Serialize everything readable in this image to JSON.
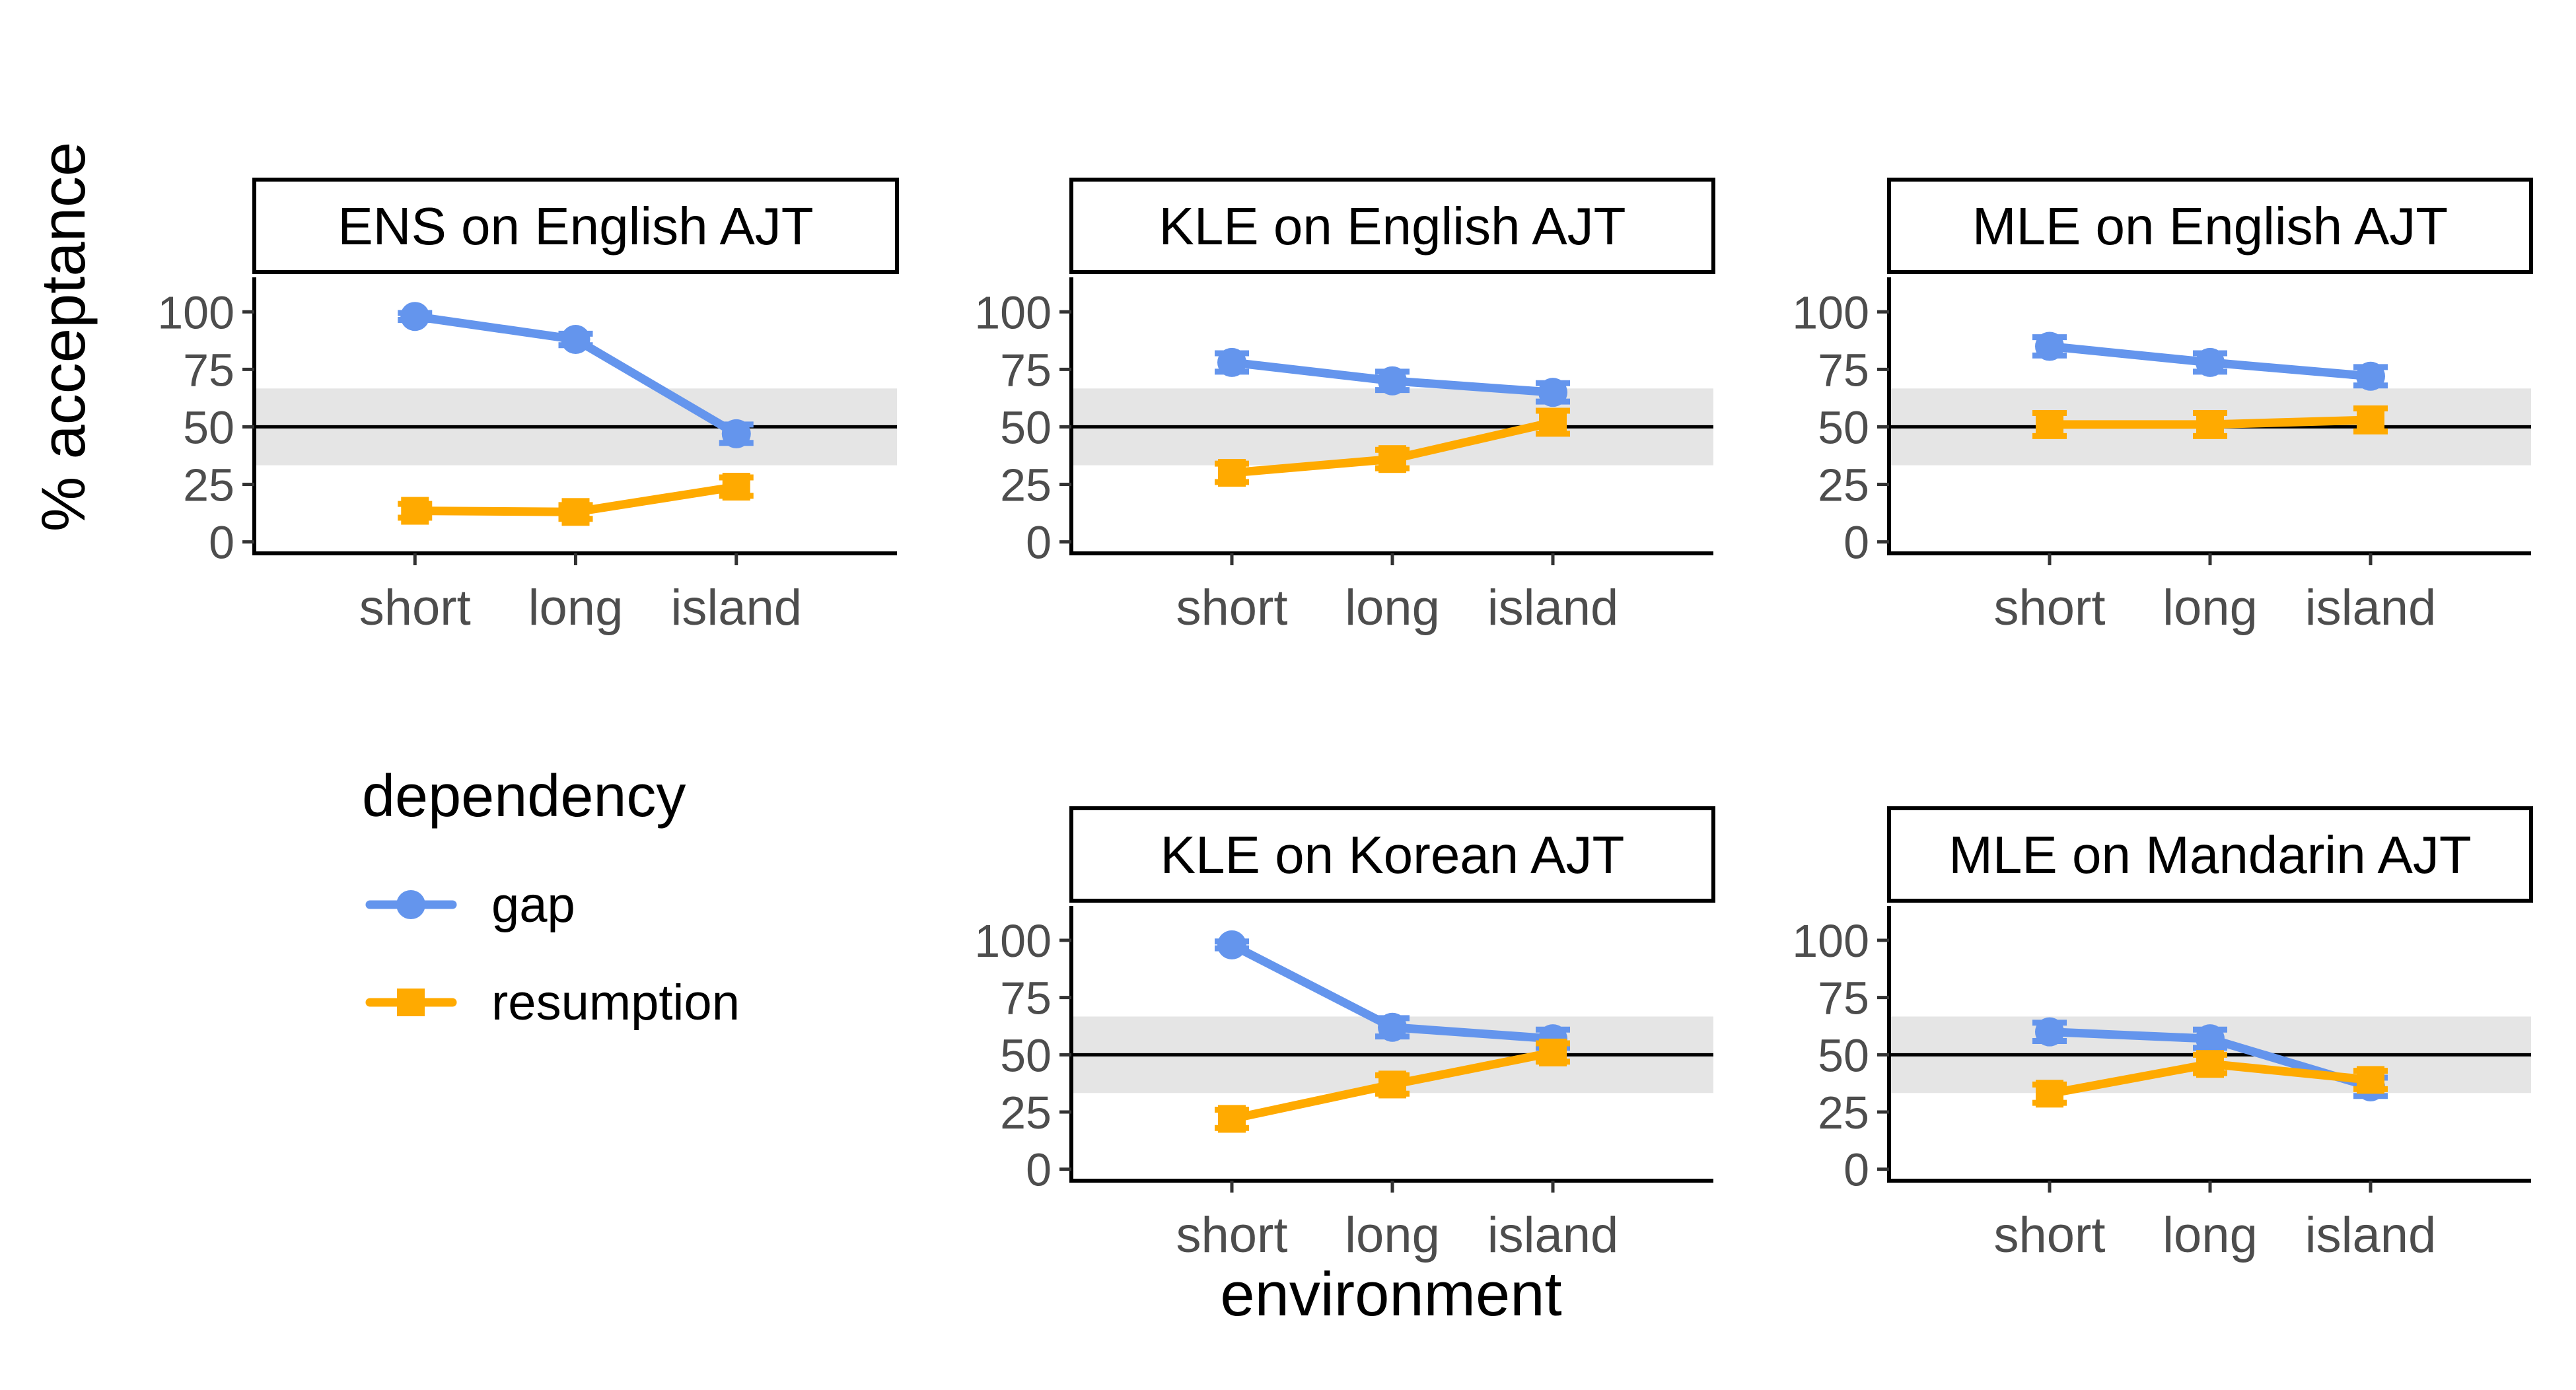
{
  "figure": {
    "ylabel": "% acceptance",
    "xlabel": "environment",
    "legend": {
      "title": "dependency",
      "entries": [
        {
          "name": "gap",
          "color": "#6495ED",
          "marker": "circle"
        },
        {
          "name": "resumption",
          "color": "#FFAA00",
          "marker": "square"
        }
      ]
    },
    "reference_line": 50,
    "chance_band": [
      33.3,
      66.7
    ],
    "colors": {
      "gap": "#6495ED",
      "resumption": "#FFAA00",
      "band": "#E5E5E5",
      "axis": "#000000"
    }
  },
  "chart_data": [
    {
      "type": "line",
      "title": "ENS on English AJT",
      "categories": [
        "short",
        "long",
        "island"
      ],
      "yticks": [
        0,
        25,
        50,
        75,
        100
      ],
      "ylim": [
        -5,
        115
      ],
      "series": [
        {
          "name": "gap",
          "values": [
            98,
            88,
            47
          ],
          "err": [
            1.5,
            2.5,
            4
          ]
        },
        {
          "name": "resumption",
          "values": [
            13.5,
            13,
            24
          ],
          "err": [
            3,
            3,
            4
          ]
        }
      ]
    },
    {
      "type": "line",
      "title": "KLE on English AJT",
      "categories": [
        "short",
        "long",
        "island"
      ],
      "yticks": [
        0,
        25,
        50,
        75,
        100
      ],
      "ylim": [
        -5,
        115
      ],
      "series": [
        {
          "name": "gap",
          "values": [
            78,
            70,
            65
          ],
          "err": [
            4,
            4,
            4
          ]
        },
        {
          "name": "resumption",
          "values": [
            30,
            36,
            52
          ],
          "err": [
            4,
            4,
            5
          ]
        }
      ]
    },
    {
      "type": "line",
      "title": "MLE on English AJT",
      "categories": [
        "short",
        "long",
        "island"
      ],
      "yticks": [
        0,
        25,
        50,
        75,
        100
      ],
      "ylim": [
        -5,
        115
      ],
      "series": [
        {
          "name": "gap",
          "values": [
            85,
            78,
            72
          ],
          "err": [
            4,
            4,
            4
          ]
        },
        {
          "name": "resumption",
          "values": [
            51,
            51,
            53
          ],
          "err": [
            5,
            5,
            5
          ]
        }
      ]
    },
    {
      "type": "line",
      "title": "KLE on Korean AJT",
      "categories": [
        "short",
        "long",
        "island"
      ],
      "yticks": [
        0,
        25,
        50,
        75,
        100
      ],
      "ylim": [
        -5,
        115
      ],
      "series": [
        {
          "name": "gap",
          "values": [
            98,
            62,
            57
          ],
          "err": [
            1.5,
            4,
            4
          ]
        },
        {
          "name": "resumption",
          "values": [
            22,
            37,
            51
          ],
          "err": [
            4,
            4,
            4
          ]
        }
      ]
    },
    {
      "type": "line",
      "title": "MLE on Mandarin AJT",
      "categories": [
        "short",
        "long",
        "island"
      ],
      "yticks": [
        0,
        25,
        50,
        75,
        100
      ],
      "ylim": [
        -5,
        115
      ],
      "series": [
        {
          "name": "gap",
          "values": [
            60,
            57,
            36
          ],
          "err": [
            4,
            4,
            4
          ]
        },
        {
          "name": "resumption",
          "values": [
            33,
            46,
            39
          ],
          "err": [
            4,
            4,
            4
          ]
        }
      ]
    }
  ]
}
